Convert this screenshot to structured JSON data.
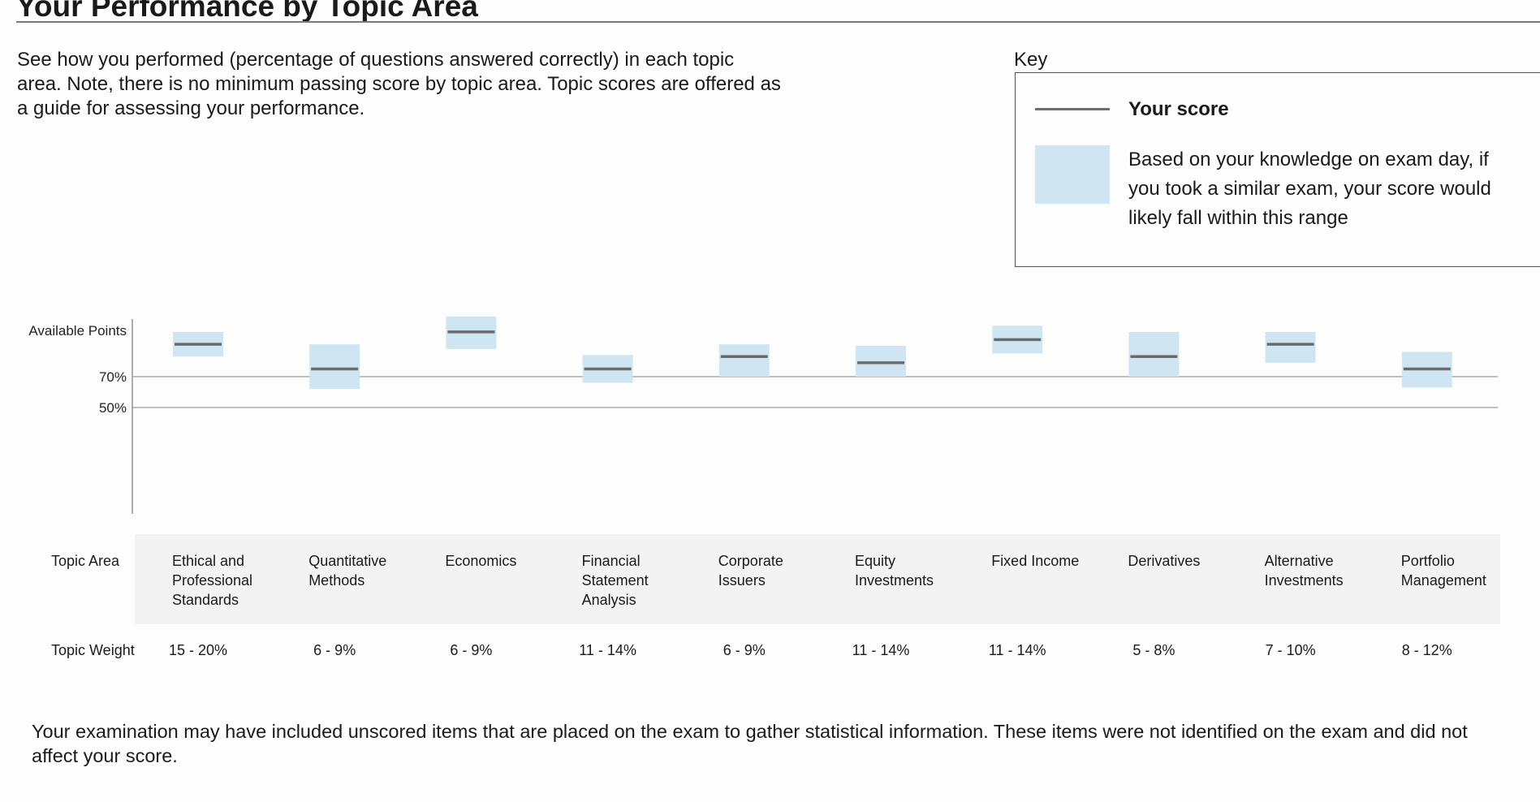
{
  "page": {
    "title": "Your Performance by Topic Area",
    "intro_lines": [
      "See how you performed (percentage of questions answered correctly) in each topic",
      "area. Note, there is no minimum passing score by topic area. Topic scores are offered as",
      "a guide for assessing your performance."
    ],
    "footnote_lines": [
      "Your examination may have included unscored items that are placed on the exam to gather statistical information. These items were not identified on the exam and did not",
      "affect your score."
    ]
  },
  "key": {
    "label": "Key",
    "score_label": "Your score",
    "range_lines": [
      "Based on your knowledge on exam day, if",
      "you took a similar exam, your score would",
      "likely fall within this range"
    ]
  },
  "table": {
    "topic_area_label": "Topic Area",
    "topic_weight_label": "Topic Weight"
  },
  "colors": {
    "range_fill": "#cfe6f2",
    "score_line": "#6b6b6b",
    "reference_line": "#9a9a9a",
    "table_band": "#f3f3f3"
  },
  "chart_data": {
    "type": "range_with_marker",
    "title": "Your Performance by Topic Area",
    "scale": "Available Points = 100%",
    "ylim": [
      0,
      100
    ],
    "reference_lines": [
      {
        "label": "70%",
        "value": 70
      },
      {
        "label": "50%",
        "value": 50
      }
    ],
    "ytick_labels": [
      "Available Points",
      "70%",
      "50%"
    ],
    "categories": [
      {
        "name_lines": [
          "Ethical and",
          "Professional",
          "Standards"
        ],
        "weight": "15 - 20%",
        "score": 91,
        "range": [
          83,
          99
        ]
      },
      {
        "name_lines": [
          "Quantitative",
          "Methods"
        ],
        "weight": "6 - 9%",
        "score": 75,
        "range": [
          62,
          91
        ]
      },
      {
        "name_lines": [
          "Economics"
        ],
        "weight": "6 - 9%",
        "score": 99,
        "range": [
          88,
          109
        ]
      },
      {
        "name_lines": [
          "Financial",
          "Statement",
          "Analysis"
        ],
        "weight": "11 - 14%",
        "score": 75,
        "range": [
          66,
          84
        ]
      },
      {
        "name_lines": [
          "Corporate",
          "Issuers"
        ],
        "weight": "6 - 9%",
        "score": 83,
        "range": [
          70,
          91
        ]
      },
      {
        "name_lines": [
          "Equity",
          "Investments"
        ],
        "weight": "11 - 14%",
        "score": 79,
        "range": [
          70,
          90
        ]
      },
      {
        "name_lines": [
          "Fixed Income"
        ],
        "weight": "11 - 14%",
        "score": 94,
        "range": [
          85,
          103
        ]
      },
      {
        "name_lines": [
          "Derivatives"
        ],
        "weight": "5 - 8%",
        "score": 83,
        "range": [
          70,
          99
        ]
      },
      {
        "name_lines": [
          "Alternative",
          "Investments"
        ],
        "weight": "7 - 10%",
        "score": 91,
        "range": [
          79,
          99
        ]
      },
      {
        "name_lines": [
          "Portfolio",
          "Management"
        ],
        "weight": "8 - 12%",
        "score": 75,
        "range": [
          63,
          86
        ]
      }
    ]
  }
}
